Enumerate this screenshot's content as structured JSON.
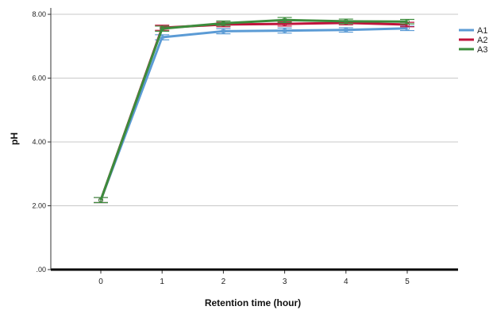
{
  "chart_data": {
    "type": "line",
    "xlabel": "Retention time (hour)",
    "ylabel": "pH",
    "x": [
      0,
      1,
      2,
      3,
      4,
      5
    ],
    "x_tick_labels": [
      "0",
      "1",
      "2",
      "3",
      "4",
      "5"
    ],
    "ylim": [
      0,
      8.2
    ],
    "y_ticks": [
      0,
      2,
      4,
      6,
      8
    ],
    "y_tick_labels": [
      ".00",
      "2.00",
      "4.00",
      "6.00",
      "8.00"
    ],
    "grid": "horizontal",
    "legend_position": "right",
    "error_bars": true,
    "series": [
      {
        "name": "A1",
        "color": "#5b9bd5",
        "values": [
          2.18,
          7.28,
          7.47,
          7.49,
          7.51,
          7.56
        ],
        "errors": [
          0.08,
          0.08,
          0.08,
          0.08,
          0.07,
          0.07
        ]
      },
      {
        "name": "A2",
        "color": "#c0143c",
        "values": [
          2.18,
          7.58,
          7.68,
          7.7,
          7.73,
          7.68
        ],
        "errors": [
          0.08,
          0.08,
          0.07,
          0.07,
          0.06,
          0.07
        ]
      },
      {
        "name": "A3",
        "color": "#3c8c3c",
        "values": [
          2.18,
          7.55,
          7.72,
          7.82,
          7.78,
          7.77
        ],
        "errors": [
          0.08,
          0.08,
          0.07,
          0.08,
          0.07,
          0.07
        ]
      }
    ]
  }
}
